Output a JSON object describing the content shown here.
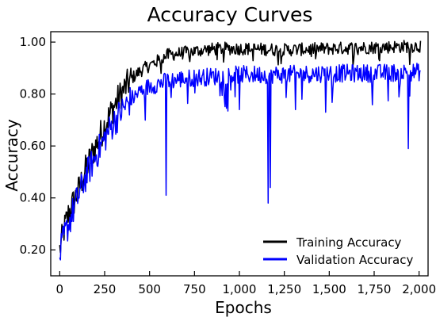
{
  "chart_data": {
    "type": "line",
    "title": "Accuracy Curves",
    "xlabel": "Epochs",
    "ylabel": "Accuracy",
    "xlim": [
      -50,
      2050
    ],
    "ylim": [
      0.1,
      1.04
    ],
    "x_ticks": [
      0,
      250,
      500,
      750,
      1000,
      1250,
      1500,
      1750,
      2000
    ],
    "x_tick_labels": [
      "0",
      "250",
      "500",
      "750",
      "1,000",
      "1,250",
      "1,500",
      "1,750",
      "2,000"
    ],
    "y_ticks": [
      0.2,
      0.4,
      0.6,
      0.8,
      1.0
    ],
    "y_tick_labels": [
      "0.20",
      "0.40",
      "0.60",
      "0.80",
      "1.00"
    ],
    "grid": false,
    "legend_position": "bottom-right",
    "series": [
      {
        "name": "Training Accuracy",
        "color": "#000000",
        "x": [
          0,
          25,
          50,
          75,
          100,
          150,
          200,
          250,
          300,
          350,
          400,
          450,
          500,
          550,
          600,
          700,
          800,
          900,
          1000,
          1250,
          1500,
          1750,
          2000,
          2010
        ],
        "values": [
          0.2,
          0.28,
          0.34,
          0.38,
          0.42,
          0.52,
          0.6,
          0.68,
          0.75,
          0.81,
          0.86,
          0.89,
          0.91,
          0.93,
          0.95,
          0.96,
          0.97,
          0.975,
          0.975,
          0.97,
          0.975,
          0.98,
          0.985,
          0.985
        ]
      },
      {
        "name": "Validation Accuracy",
        "color": "#0000ff",
        "x": [
          0,
          25,
          50,
          75,
          100,
          150,
          200,
          250,
          300,
          350,
          400,
          450,
          500,
          550,
          600,
          700,
          800,
          900,
          1000,
          1250,
          1500,
          1750,
          2000,
          2010
        ],
        "values": [
          0.18,
          0.25,
          0.3,
          0.35,
          0.4,
          0.49,
          0.56,
          0.63,
          0.69,
          0.74,
          0.78,
          0.81,
          0.83,
          0.84,
          0.85,
          0.86,
          0.865,
          0.87,
          0.875,
          0.875,
          0.88,
          0.88,
          0.885,
          0.885
        ],
        "dips": [
          {
            "x": 590,
            "value": 0.41
          },
          {
            "x": 1160,
            "value": 0.38
          },
          {
            "x": 1170,
            "value": 0.44
          },
          {
            "x": 1940,
            "value": 0.59
          },
          {
            "x": 1000,
            "value": 0.74
          },
          {
            "x": 1480,
            "value": 0.73
          },
          {
            "x": 1310,
            "value": 0.74
          }
        ]
      }
    ]
  }
}
